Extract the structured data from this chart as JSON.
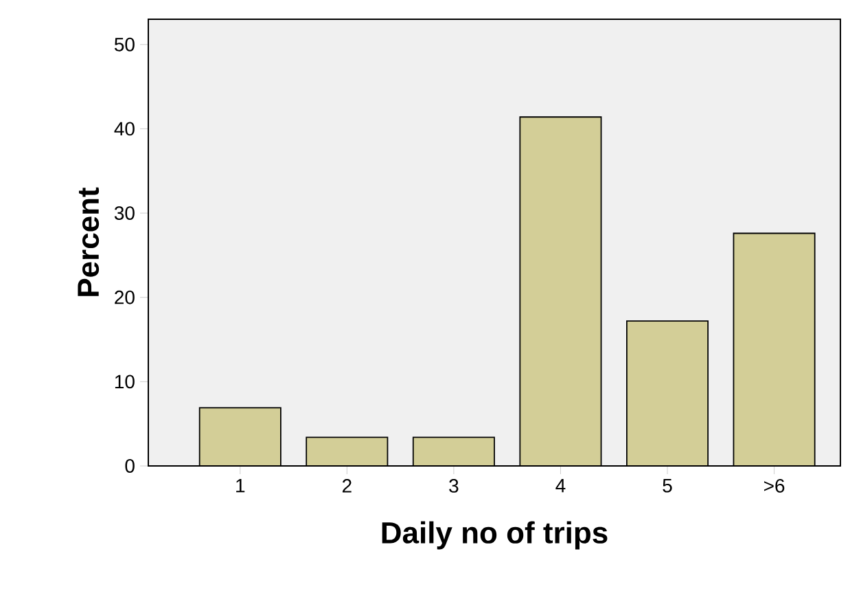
{
  "chart_data": {
    "type": "bar",
    "xlabel": "Daily no of trips",
    "ylabel": "Percent",
    "categories": [
      "1",
      "2",
      "3",
      "4",
      "5",
      ">6"
    ],
    "values": [
      6.9,
      3.4,
      3.4,
      41.4,
      17.2,
      27.6
    ],
    "color": "#d3ce97",
    "ylim": [
      0,
      53
    ],
    "yticks": [
      0,
      10,
      20,
      30,
      40,
      50
    ],
    "grid": false
  }
}
